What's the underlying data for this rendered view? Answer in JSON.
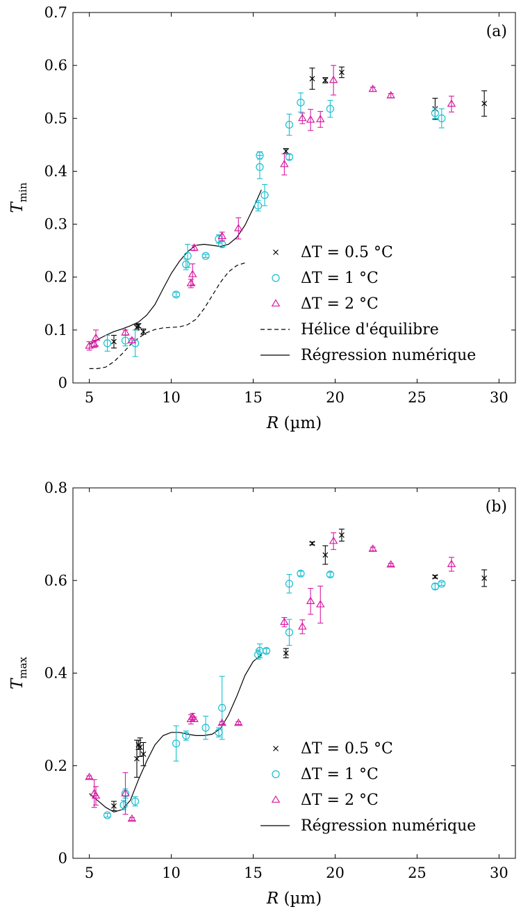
{
  "chart_data": [
    {
      "panel_label": "(a)",
      "type": "scatter",
      "xlabel": "R (µm)",
      "ylabel": "Tmin",
      "ylabel_main": "T",
      "ylabel_sub": "min",
      "xlim": [
        4,
        31
      ],
      "ylim": [
        0,
        0.7
      ],
      "xticks": [
        5,
        10,
        15,
        20,
        25,
        30
      ],
      "yticks": [
        0,
        0.1,
        0.2,
        0.3,
        0.4,
        0.5,
        0.6,
        0.7
      ],
      "ytick_labels": [
        "0",
        "0.1",
        "0.2",
        "0.3",
        "0.4",
        "0.5",
        "0.6",
        "0.7"
      ],
      "legend_position": "center-right",
      "series": [
        {
          "name": "ΔT = 0.5 °C",
          "marker": "cross",
          "color": "#000000",
          "points": [
            {
              "x": 6.5,
              "y": 0.078,
              "err": 0.012
            },
            {
              "x": 7.9,
              "y": 0.105,
              "err": 0.005
            },
            {
              "x": 8.0,
              "y": 0.108,
              "err": 0.004
            },
            {
              "x": 8.3,
              "y": 0.097,
              "err": 0.005
            },
            {
              "x": 17.0,
              "y": 0.438,
              "err": 0.005
            },
            {
              "x": 18.6,
              "y": 0.575,
              "err": 0.02
            },
            {
              "x": 19.4,
              "y": 0.572,
              "err": 0.005
            },
            {
              "x": 20.4,
              "y": 0.587,
              "err": 0.01
            },
            {
              "x": 26.1,
              "y": 0.518,
              "err": 0.02
            },
            {
              "x": 29.1,
              "y": 0.528,
              "err": 0.024
            }
          ]
        },
        {
          "name": "ΔT = 1 °C",
          "marker": "circle",
          "color": "#17becf",
          "points": [
            {
              "x": 6.1,
              "y": 0.075,
              "err": 0.015
            },
            {
              "x": 7.2,
              "y": 0.08,
              "err": 0.01
            },
            {
              "x": 7.8,
              "y": 0.075,
              "err": 0.025
            },
            {
              "x": 10.3,
              "y": 0.167,
              "err": 0.004
            },
            {
              "x": 10.9,
              "y": 0.224,
              "err": 0.01
            },
            {
              "x": 11.0,
              "y": 0.24,
              "err": 0.022
            },
            {
              "x": 12.1,
              "y": 0.24,
              "err": 0.003
            },
            {
              "x": 12.9,
              "y": 0.272,
              "err": 0.008
            },
            {
              "x": 13.1,
              "y": 0.262,
              "err": 0.005
            },
            {
              "x": 15.3,
              "y": 0.335,
              "err": 0.01
            },
            {
              "x": 15.4,
              "y": 0.408,
              "err": 0.022
            },
            {
              "x": 15.4,
              "y": 0.43,
              "err": 0.007
            },
            {
              "x": 15.7,
              "y": 0.355,
              "err": 0.02
            },
            {
              "x": 17.2,
              "y": 0.488,
              "err": 0.02
            },
            {
              "x": 17.2,
              "y": 0.427,
              "err": 0.005
            },
            {
              "x": 17.9,
              "y": 0.53,
              "err": 0.018
            },
            {
              "x": 19.7,
              "y": 0.518,
              "err": 0.016
            },
            {
              "x": 26.1,
              "y": 0.51,
              "err": 0.01
            },
            {
              "x": 26.5,
              "y": 0.5,
              "err": 0.018
            }
          ]
        },
        {
          "name": "ΔT = 2 °C",
          "marker": "triangle",
          "color": "#d61aa0",
          "points": [
            {
              "x": 5.0,
              "y": 0.07,
              "err": 0.008
            },
            {
              "x": 5.3,
              "y": 0.073,
              "err": 0.006
            },
            {
              "x": 5.4,
              "y": 0.085,
              "err": 0.015
            },
            {
              "x": 7.2,
              "y": 0.095,
              "err": 0.005
            },
            {
              "x": 7.6,
              "y": 0.08,
              "err": 0.004
            },
            {
              "x": 11.2,
              "y": 0.188,
              "err": 0.008
            },
            {
              "x": 11.3,
              "y": 0.205,
              "err": 0.02
            },
            {
              "x": 11.4,
              "y": 0.255,
              "err": 0.005
            },
            {
              "x": 13.1,
              "y": 0.277,
              "err": 0.008
            },
            {
              "x": 14.1,
              "y": 0.292,
              "err": 0.02
            },
            {
              "x": 16.9,
              "y": 0.413,
              "err": 0.02
            },
            {
              "x": 18.0,
              "y": 0.5,
              "err": 0.01
            },
            {
              "x": 18.5,
              "y": 0.497,
              "err": 0.02
            },
            {
              "x": 19.1,
              "y": 0.498,
              "err": 0.015
            },
            {
              "x": 19.9,
              "y": 0.572,
              "err": 0.028
            },
            {
              "x": 22.3,
              "y": 0.555,
              "err": 0.004
            },
            {
              "x": 23.4,
              "y": 0.543,
              "err": 0.004
            },
            {
              "x": 27.1,
              "y": 0.527,
              "err": 0.015
            }
          ]
        }
      ],
      "curves": [
        {
          "name": "Hélice d'équilibre",
          "style": "dashed",
          "points": [
            [
              5.0,
              0.027
            ],
            [
              5.5,
              0.027
            ],
            [
              6.0,
              0.03
            ],
            [
              6.5,
              0.04
            ],
            [
              7.0,
              0.055
            ],
            [
              7.5,
              0.072
            ],
            [
              8.0,
              0.085
            ],
            [
              8.5,
              0.095
            ],
            [
              9.0,
              0.101
            ],
            [
              9.5,
              0.104
            ],
            [
              10.0,
              0.105
            ],
            [
              10.5,
              0.106
            ],
            [
              11.0,
              0.11
            ],
            [
              11.5,
              0.12
            ],
            [
              12.0,
              0.14
            ],
            [
              12.5,
              0.165
            ],
            [
              13.0,
              0.19
            ],
            [
              13.5,
              0.21
            ],
            [
              14.0,
              0.222
            ],
            [
              14.5,
              0.227
            ]
          ]
        },
        {
          "name": "Régression numérique",
          "style": "solid",
          "points": [
            [
              5.0,
              0.073
            ],
            [
              5.5,
              0.082
            ],
            [
              6.0,
              0.09
            ],
            [
              6.5,
              0.097
            ],
            [
              7.0,
              0.102
            ],
            [
              7.5,
              0.108
            ],
            [
              8.0,
              0.115
            ],
            [
              8.5,
              0.128
            ],
            [
              9.0,
              0.148
            ],
            [
              9.5,
              0.178
            ],
            [
              10.0,
              0.207
            ],
            [
              10.5,
              0.23
            ],
            [
              11.0,
              0.248
            ],
            [
              11.5,
              0.26
            ],
            [
              12.0,
              0.262
            ],
            [
              12.5,
              0.26
            ],
            [
              13.0,
              0.258
            ],
            [
              13.5,
              0.262
            ],
            [
              14.0,
              0.275
            ],
            [
              14.5,
              0.298
            ],
            [
              15.0,
              0.33
            ],
            [
              15.5,
              0.365
            ]
          ]
        }
      ]
    },
    {
      "panel_label": "(b)",
      "type": "scatter",
      "xlabel": "R (µm)",
      "ylabel": "Tmax",
      "ylabel_main": "T",
      "ylabel_sub": "max",
      "xlim": [
        4,
        31
      ],
      "ylim": [
        0,
        0.8
      ],
      "xticks": [
        5,
        10,
        15,
        20,
        25,
        30
      ],
      "yticks": [
        0,
        0.2,
        0.4,
        0.6,
        0.8
      ],
      "ytick_labels": [
        "0",
        "0.2",
        "0.4",
        "0.6",
        "0.8"
      ],
      "legend_position": "center-right",
      "series": [
        {
          "name": "ΔT = 0.5 °C",
          "marker": "cross",
          "color": "#000000",
          "points": [
            {
              "x": 6.5,
              "y": 0.113,
              "err": 0.01
            },
            {
              "x": 7.9,
              "y": 0.215,
              "err": 0.04
            },
            {
              "x": 8.0,
              "y": 0.245,
              "err": 0.01
            },
            {
              "x": 8.1,
              "y": 0.24,
              "err": 0.02
            },
            {
              "x": 8.3,
              "y": 0.225,
              "err": 0.025
            },
            {
              "x": 17.0,
              "y": 0.443,
              "err": 0.01
            },
            {
              "x": 18.6,
              "y": 0.68,
              "err": 0.003
            },
            {
              "x": 19.4,
              "y": 0.655,
              "err": 0.02
            },
            {
              "x": 20.4,
              "y": 0.698,
              "err": 0.013
            },
            {
              "x": 26.1,
              "y": 0.608,
              "err": 0.003
            },
            {
              "x": 29.1,
              "y": 0.605,
              "err": 0.018
            }
          ]
        },
        {
          "name": "ΔT = 1 °C",
          "marker": "circle",
          "color": "#17becf",
          "points": [
            {
              "x": 6.1,
              "y": 0.093,
              "err": 0.004
            },
            {
              "x": 7.1,
              "y": 0.115,
              "err": 0.01
            },
            {
              "x": 7.2,
              "y": 0.14,
              "err": 0.01
            },
            {
              "x": 7.8,
              "y": 0.123,
              "err": 0.01
            },
            {
              "x": 10.3,
              "y": 0.248,
              "err": 0.038
            },
            {
              "x": 10.9,
              "y": 0.265,
              "err": 0.01
            },
            {
              "x": 12.1,
              "y": 0.282,
              "err": 0.025
            },
            {
              "x": 12.9,
              "y": 0.272,
              "err": 0.01
            },
            {
              "x": 13.1,
              "y": 0.325,
              "err": 0.068
            },
            {
              "x": 15.3,
              "y": 0.44,
              "err": 0.01
            },
            {
              "x": 15.4,
              "y": 0.448,
              "err": 0.015
            },
            {
              "x": 15.8,
              "y": 0.448,
              "err": 0.005
            },
            {
              "x": 17.2,
              "y": 0.593,
              "err": 0.02
            },
            {
              "x": 17.2,
              "y": 0.488,
              "err": 0.028
            },
            {
              "x": 17.9,
              "y": 0.615,
              "err": 0.005
            },
            {
              "x": 19.7,
              "y": 0.613,
              "err": 0.005
            },
            {
              "x": 26.1,
              "y": 0.587,
              "err": 0.006
            },
            {
              "x": 26.5,
              "y": 0.593,
              "err": 0.004
            }
          ]
        },
        {
          "name": "ΔT = 2 °C",
          "marker": "triangle",
          "color": "#d61aa0",
          "points": [
            {
              "x": 5.0,
              "y": 0.175,
              "err": 0.003
            },
            {
              "x": 5.3,
              "y": 0.14,
              "err": 0.03
            },
            {
              "x": 5.4,
              "y": 0.135,
              "err": 0.02
            },
            {
              "x": 7.2,
              "y": 0.14,
              "err": 0.045
            },
            {
              "x": 7.6,
              "y": 0.085,
              "err": 0.003
            },
            {
              "x": 11.2,
              "y": 0.3,
              "err": 0.01
            },
            {
              "x": 11.3,
              "y": 0.305,
              "err": 0.008
            },
            {
              "x": 11.4,
              "y": 0.3,
              "err": 0.005
            },
            {
              "x": 13.1,
              "y": 0.292,
              "err": 0.003
            },
            {
              "x": 14.1,
              "y": 0.292,
              "err": 0.003
            },
            {
              "x": 16.9,
              "y": 0.51,
              "err": 0.01
            },
            {
              "x": 18.0,
              "y": 0.5,
              "err": 0.015
            },
            {
              "x": 18.5,
              "y": 0.555,
              "err": 0.028
            },
            {
              "x": 19.1,
              "y": 0.548,
              "err": 0.04
            },
            {
              "x": 19.9,
              "y": 0.685,
              "err": 0.018
            },
            {
              "x": 22.3,
              "y": 0.668,
              "err": 0.004
            },
            {
              "x": 23.4,
              "y": 0.634,
              "err": 0.003
            },
            {
              "x": 27.1,
              "y": 0.635,
              "err": 0.015
            }
          ]
        }
      ],
      "curves": [
        {
          "name": "Régression numérique",
          "style": "solid",
          "points": [
            [
              5.0,
              0.14
            ],
            [
              5.5,
              0.125
            ],
            [
              6.0,
              0.11
            ],
            [
              6.5,
              0.1
            ],
            [
              7.0,
              0.105
            ],
            [
              7.5,
              0.125
            ],
            [
              8.0,
              0.17
            ],
            [
              8.5,
              0.21
            ],
            [
              9.0,
              0.245
            ],
            [
              9.5,
              0.265
            ],
            [
              10.0,
              0.272
            ],
            [
              10.5,
              0.272
            ],
            [
              11.0,
              0.268
            ],
            [
              11.5,
              0.265
            ],
            [
              12.0,
              0.265
            ],
            [
              12.5,
              0.268
            ],
            [
              13.0,
              0.28
            ],
            [
              13.5,
              0.31
            ],
            [
              14.0,
              0.35
            ],
            [
              14.5,
              0.395
            ],
            [
              15.0,
              0.425
            ],
            [
              15.5,
              0.44
            ]
          ]
        }
      ]
    }
  ]
}
